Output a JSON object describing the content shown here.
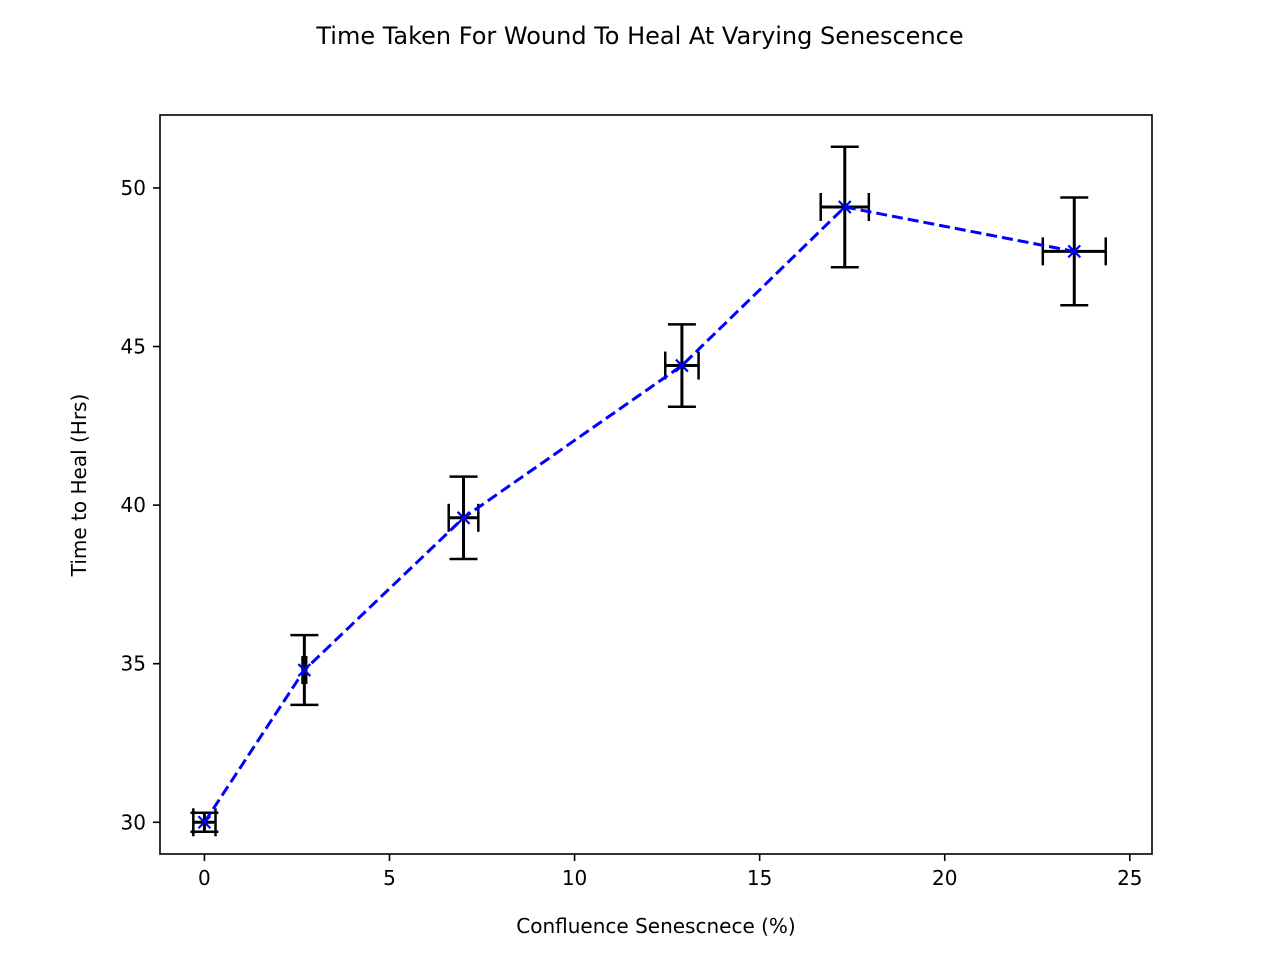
{
  "chart_data": {
    "type": "line",
    "title": "Time Taken For Wound To Heal At Varying Senescence",
    "xlabel": "Confluence Senescnece (%)",
    "ylabel": "Time to Heal (Hrs)",
    "xlim": [
      -1.2,
      25.6
    ],
    "ylim": [
      29.0,
      52.3
    ],
    "xticks": [
      0,
      5,
      10,
      15,
      20,
      25
    ],
    "yticks": [
      30,
      35,
      40,
      45,
      50
    ],
    "grid": false,
    "legend": "none",
    "line_style": "dashed",
    "marker": "x",
    "colors": {
      "line": "#0000ff",
      "errorbar": "#000000"
    },
    "series": [
      {
        "x": [
          0,
          2.7,
          7.0,
          12.9,
          17.3,
          23.5
        ],
        "y": [
          30.0,
          34.8,
          39.6,
          44.4,
          49.4,
          48.0
        ],
        "xerr": [
          0.3,
          0.05,
          0.4,
          0.45,
          0.65,
          0.85
        ],
        "yerr": [
          0.3,
          1.1,
          1.3,
          1.3,
          1.9,
          1.7
        ]
      }
    ]
  }
}
